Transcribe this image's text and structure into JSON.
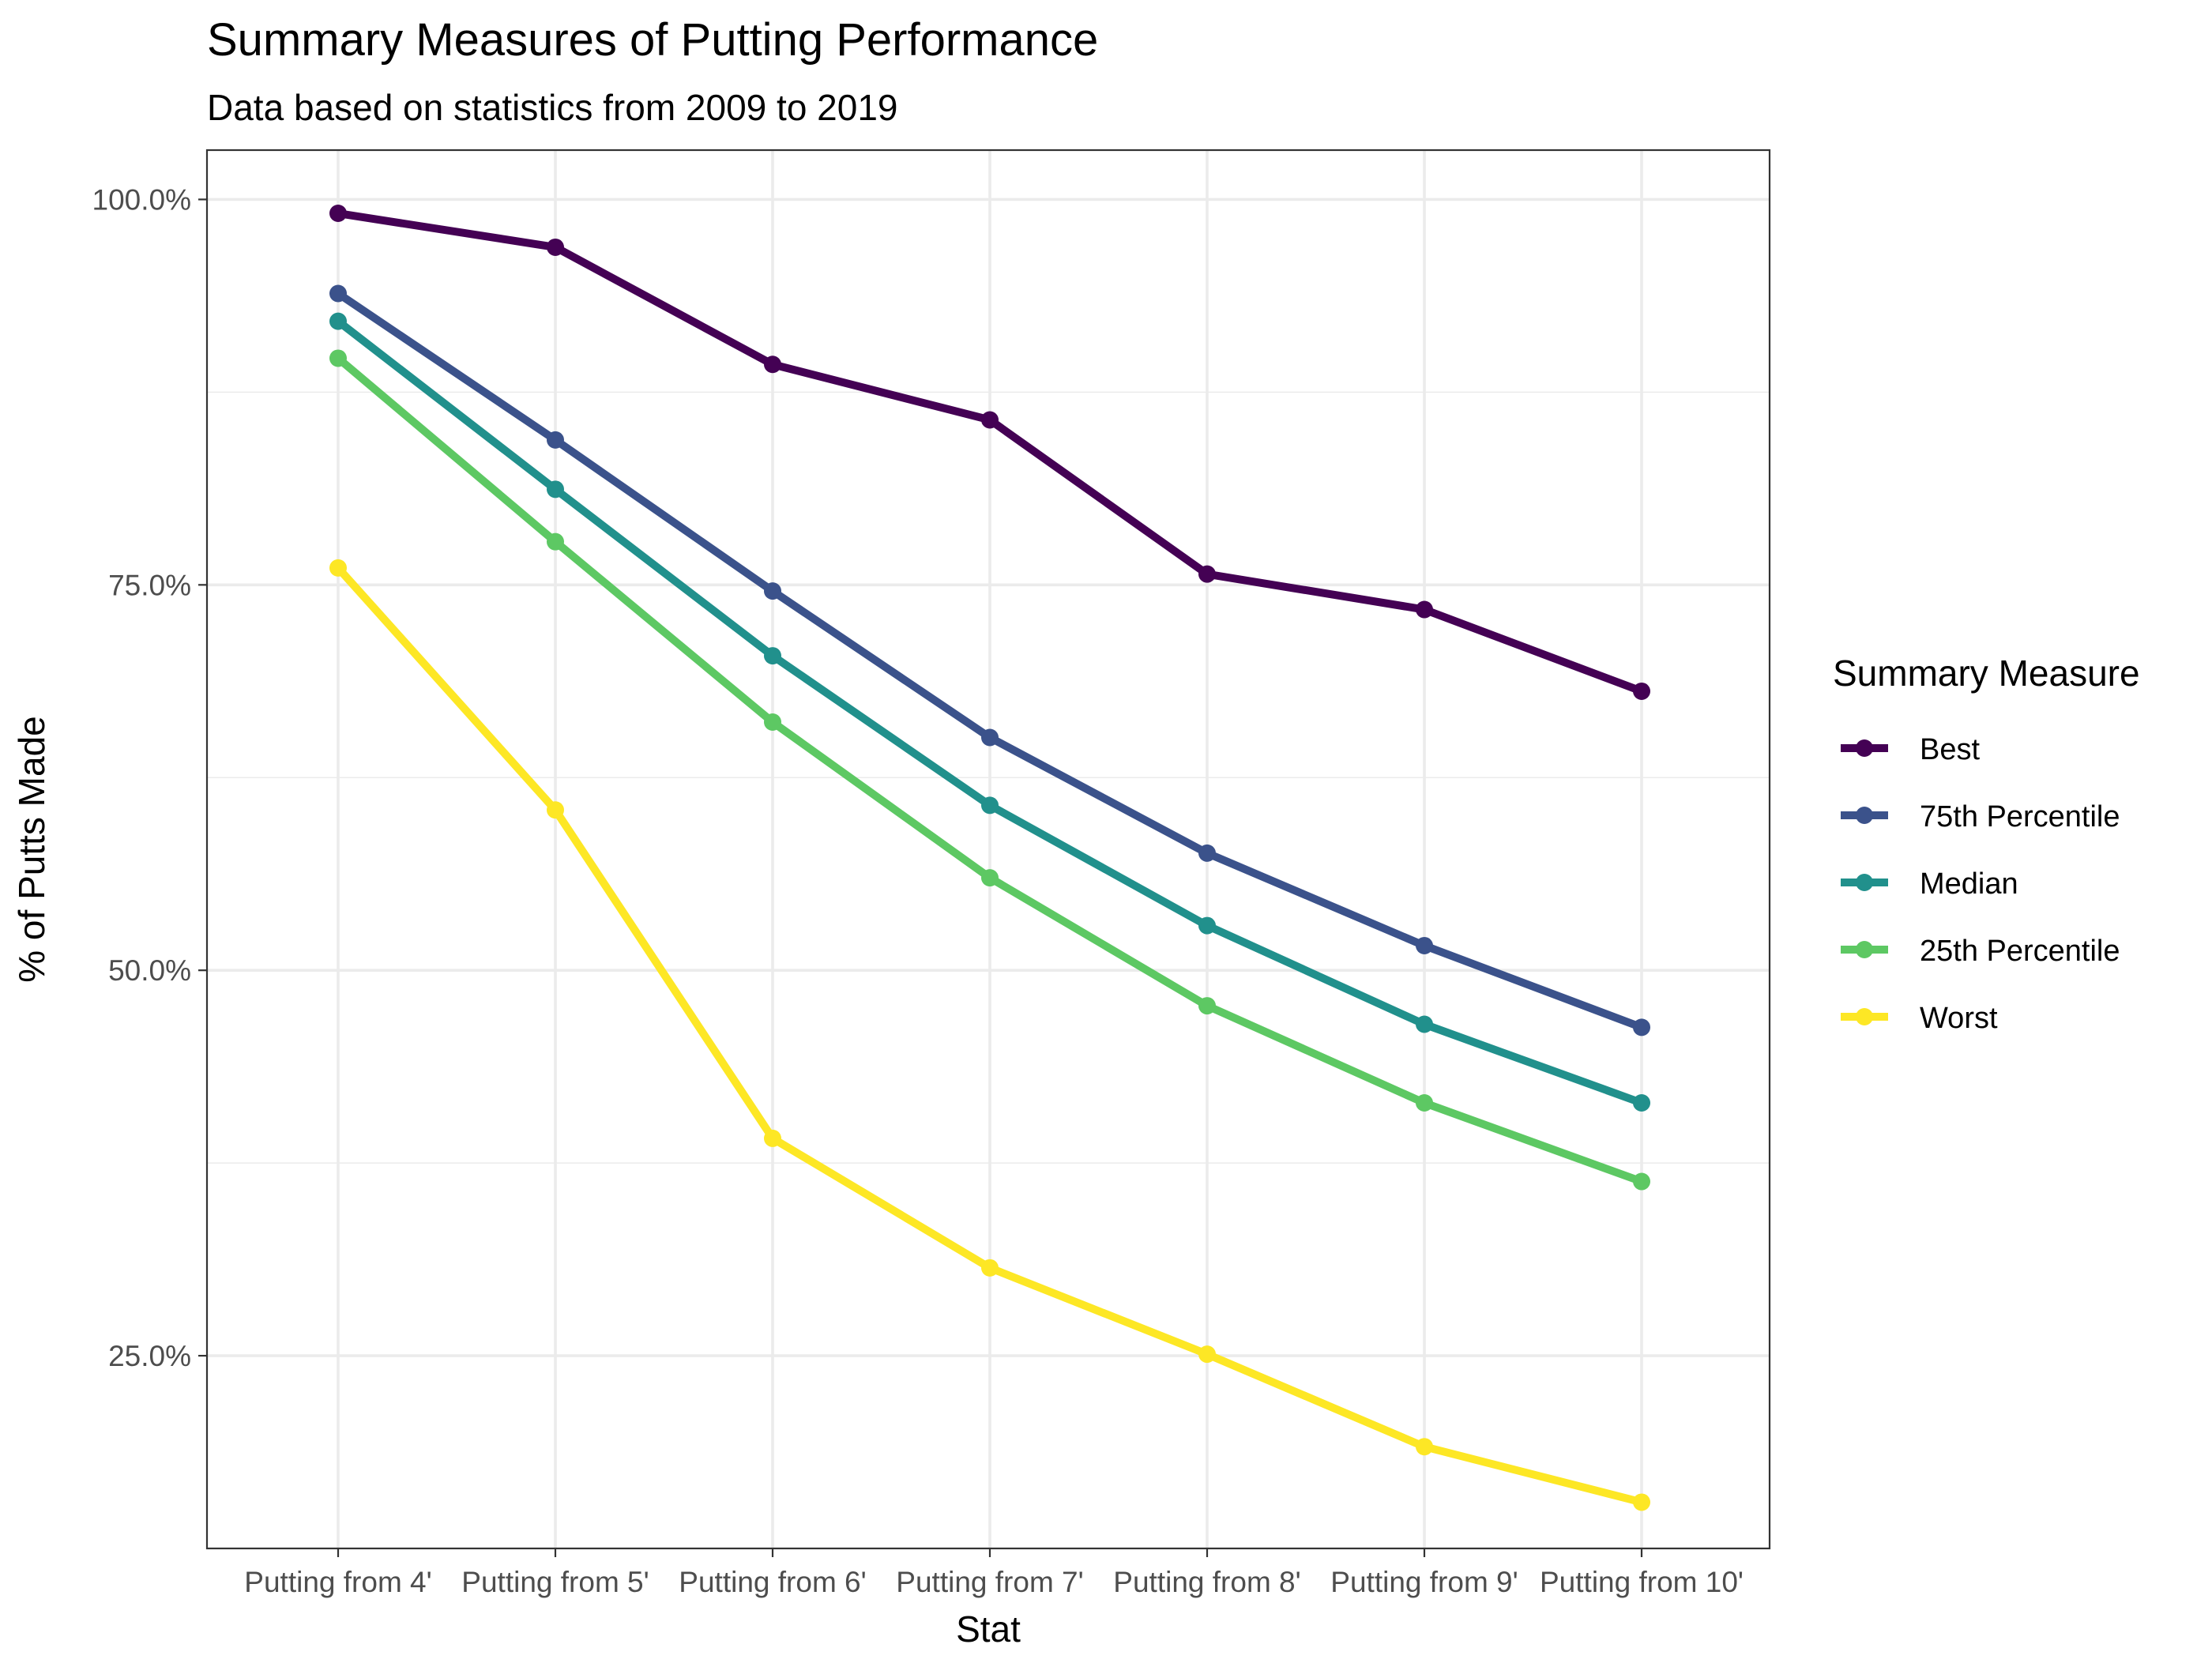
{
  "chart_data": {
    "type": "line",
    "title": "Summary Measures of Putting Performance",
    "subtitle": "Data based on statistics from 2009 to 2019",
    "xlabel": "Stat",
    "ylabel": "% of Putts Made",
    "categories": [
      "Putting from 4'",
      "Putting from 5'",
      "Putting from 6'",
      "Putting from 7'",
      "Putting from 8'",
      "Putting from 9'",
      "Putting from 10'"
    ],
    "ylim": [
      12.5,
      103.2
    ],
    "yticks": [
      25,
      50,
      75,
      100
    ],
    "ytick_labels": [
      "25.0%",
      "50.0%",
      "75.0%",
      "100.0%"
    ],
    "grid": true,
    "legend": {
      "title": "Summary Measure",
      "position": "right"
    },
    "series": [
      {
        "name": "Best",
        "color": "#440154",
        "values": [
          99.1,
          96.9,
          89.3,
          85.7,
          75.7,
          73.4,
          68.1
        ]
      },
      {
        "name": "75th Percentile",
        "color": "#3B528B",
        "values": [
          93.9,
          84.4,
          74.6,
          65.1,
          57.6,
          51.6,
          46.3
        ]
      },
      {
        "name": "Median",
        "color": "#21908C",
        "values": [
          92.1,
          81.2,
          70.4,
          60.7,
          52.9,
          46.5,
          41.4
        ]
      },
      {
        "name": "25th Percentile",
        "color": "#5DC863",
        "values": [
          89.7,
          77.8,
          66.1,
          56.0,
          47.7,
          41.4,
          36.3
        ]
      },
      {
        "name": "Worst",
        "color": "#FDE725",
        "values": [
          76.1,
          60.4,
          39.1,
          30.7,
          25.1,
          19.1,
          15.5
        ]
      }
    ]
  }
}
